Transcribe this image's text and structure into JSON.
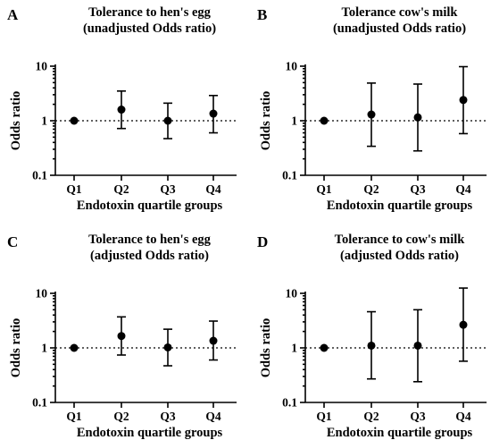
{
  "chart_data": [
    {
      "type": "scatter",
      "panel": "A",
      "title_lines": [
        "Tolerance to hen's egg",
        "(unadjusted Odds ratio)"
      ],
      "xlabel": "Endotoxin quartile groups",
      "ylabel": "Odds ratio",
      "y_scale": "log",
      "ylim": [
        0.1,
        10
      ],
      "y_ticks": [
        {
          "value": 0.1,
          "label": "0.1"
        },
        {
          "value": 1,
          "label": "1"
        },
        {
          "value": 10,
          "label": "10"
        }
      ],
      "reference_line": 1,
      "categories": [
        "Q1",
        "Q2",
        "Q3",
        "Q4"
      ],
      "values": [
        1.0,
        1.6,
        1.0,
        1.35
      ],
      "ci_lower": [
        null,
        0.72,
        0.47,
        0.6
      ],
      "ci_upper": [
        null,
        3.5,
        2.1,
        2.9
      ]
    },
    {
      "type": "scatter",
      "panel": "B",
      "title_lines": [
        "Tolerance cow's milk",
        "(unadjusted Odds ratio)"
      ],
      "xlabel": "Endotoxin quartile groups",
      "ylabel": "Odds ratio",
      "y_scale": "log",
      "ylim": [
        0.1,
        10
      ],
      "y_ticks": [
        {
          "value": 0.1,
          "label": "0.1"
        },
        {
          "value": 1,
          "label": "1"
        },
        {
          "value": 10,
          "label": "10"
        }
      ],
      "reference_line": 1,
      "categories": [
        "Q1",
        "Q2",
        "Q3",
        "Q4"
      ],
      "values": [
        1.0,
        1.3,
        1.15,
        2.4
      ],
      "ci_lower": [
        null,
        0.34,
        0.28,
        0.58
      ],
      "ci_upper": [
        null,
        4.9,
        4.7,
        9.8
      ]
    },
    {
      "type": "scatter",
      "panel": "C",
      "title_lines": [
        "Tolerance to hen's egg",
        "(adjusted Odds ratio)"
      ],
      "xlabel": "Endotoxin quartile groups",
      "ylabel": "Odds ratio",
      "y_scale": "log",
      "ylim": [
        0.1,
        10
      ],
      "y_ticks": [
        {
          "value": 0.1,
          "label": "0.1"
        },
        {
          "value": 1,
          "label": "1"
        },
        {
          "value": 10,
          "label": "10"
        }
      ],
      "reference_line": 1,
      "categories": [
        "Q1",
        "Q2",
        "Q3",
        "Q4"
      ],
      "values": [
        1.0,
        1.65,
        1.02,
        1.35
      ],
      "ci_lower": [
        null,
        0.74,
        0.47,
        0.6
      ],
      "ci_upper": [
        null,
        3.7,
        2.2,
        3.1
      ]
    },
    {
      "type": "scatter",
      "panel": "D",
      "title_lines": [
        "Tolerance to cow's milk",
        "(adjusted Odds ratio)"
      ],
      "xlabel": "Endotoxin quartile groups",
      "ylabel": "Odds ratio",
      "y_scale": "log",
      "ylim": [
        0.1,
        10
      ],
      "y_ticks": [
        {
          "value": 0.1,
          "label": "0.1"
        },
        {
          "value": 1,
          "label": "1"
        },
        {
          "value": 10,
          "label": "10"
        }
      ],
      "reference_line": 1,
      "categories": [
        "Q1",
        "Q2",
        "Q3",
        "Q4"
      ],
      "values": [
        1.0,
        1.1,
        1.1,
        2.65
      ],
      "ci_lower": [
        null,
        0.27,
        0.24,
        0.57
      ],
      "ci_upper": [
        null,
        4.6,
        5.0,
        12.5
      ]
    }
  ]
}
